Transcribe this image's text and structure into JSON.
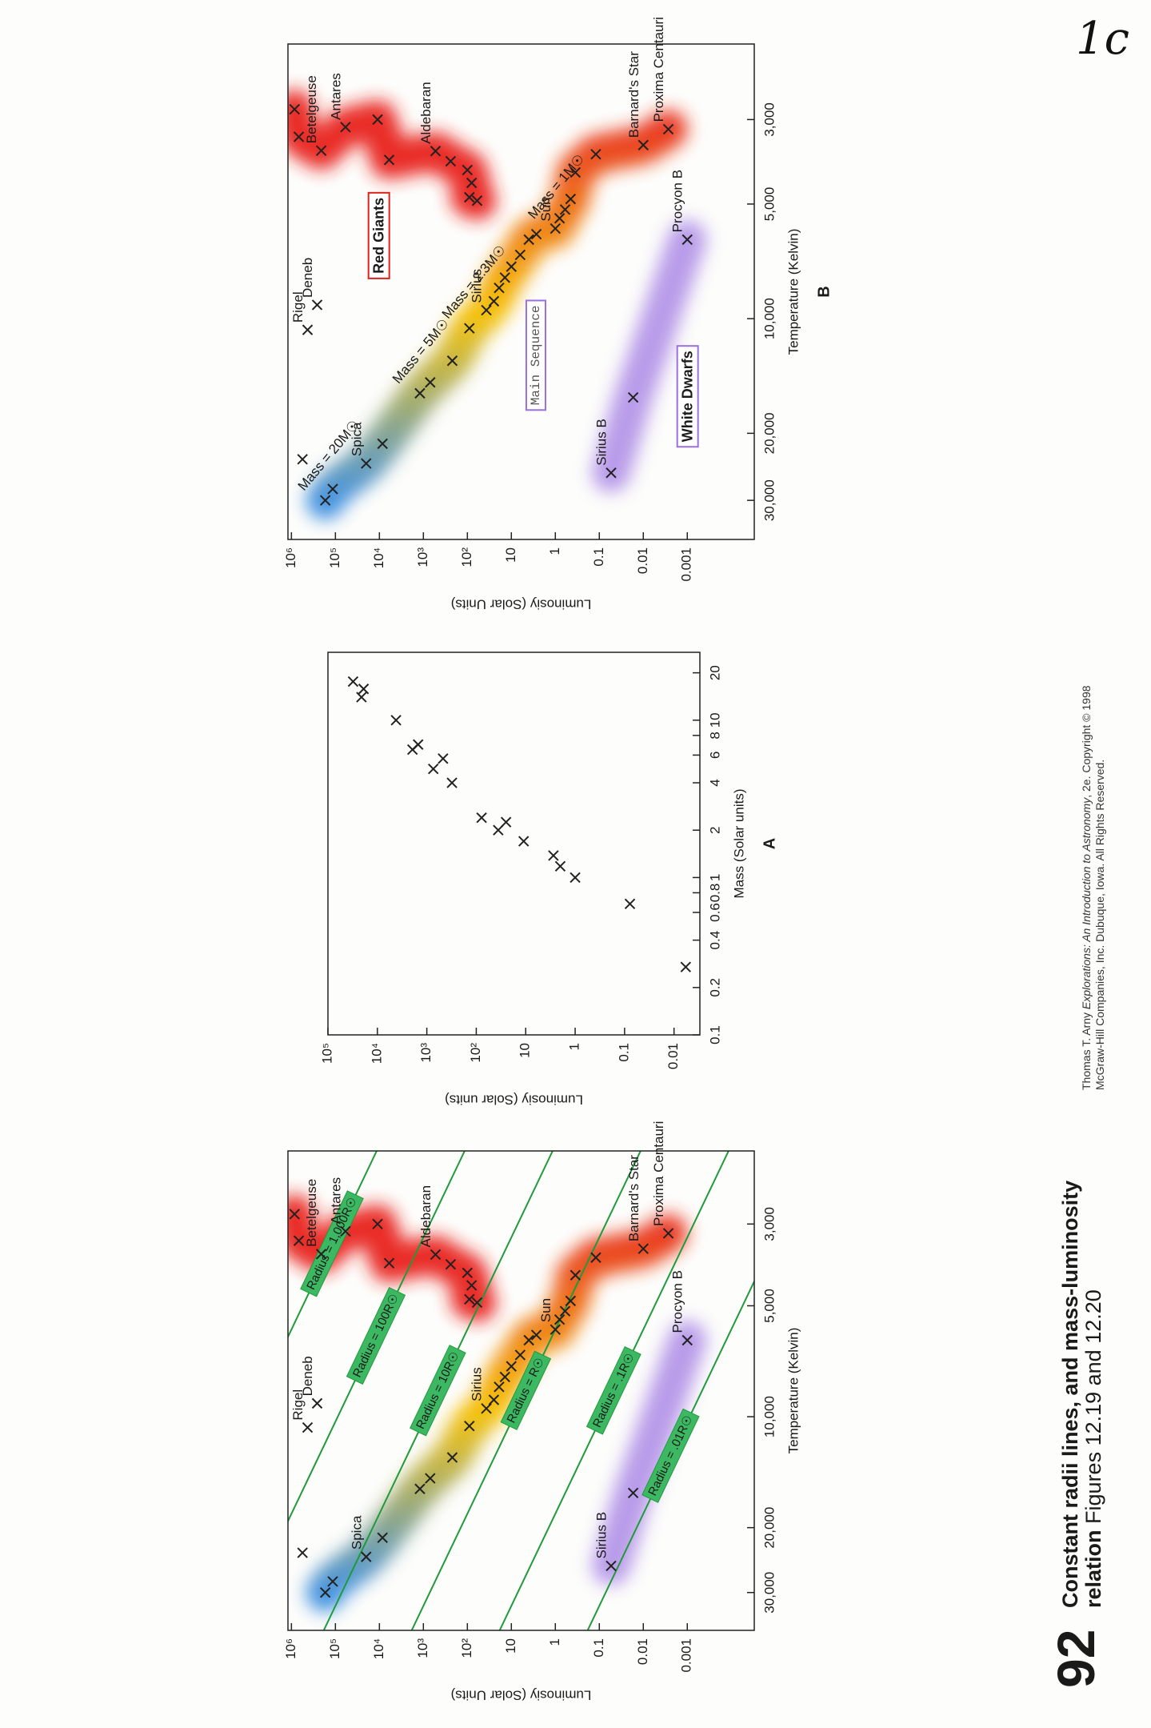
{
  "handwritten_note": "1c",
  "page_number": "92",
  "caption": {
    "title": "Constant radii lines, and mass-luminosity relation",
    "figures": "Figures 12.19 and 12.20"
  },
  "credit": {
    "author": "Thomas T. Arny",
    "book": "Explorations: An Introduction to Astronomy",
    "edition": ", 2e. Copyright © 1998",
    "publisher": "McGraw-Hill Companies, Inc. Dubuque, Iowa. All Rights Reserved."
  },
  "chart_data": [
    {
      "type": "scatter",
      "x_label": "Temperature (Kelvin)",
      "y_label": "Luminosiy (Solar Units)",
      "x_scale": "log",
      "y_scale": "log",
      "xlim": [
        38000,
        1900
      ],
      "ylim": [
        3e-05,
        1200000
      ],
      "xticks": [
        {
          "value": 30000,
          "label": "30,000"
        },
        {
          "value": 20000,
          "label": "20,000"
        },
        {
          "value": 10000,
          "label": "10,000"
        },
        {
          "value": 5000,
          "label": "5,000"
        },
        {
          "value": 3000,
          "label": "3,000"
        }
      ],
      "yticks": [
        {
          "value": 1000000,
          "label": "10⁶"
        },
        {
          "value": 100000,
          "label": "10⁵"
        },
        {
          "value": 10000,
          "label": "10⁴"
        },
        {
          "value": 1000,
          "label": "10³"
        },
        {
          "value": 100,
          "label": "10²"
        },
        10,
        1,
        0.1,
        0.01,
        0.001
      ],
      "marker_color": "#222222",
      "radius_lines": {
        "color": "#1f9a3c",
        "label_color": "#3db862",
        "values": [
          1000,
          100,
          10,
          1,
          0.1,
          0.01
        ],
        "value_labels": [
          "Radius = 1,000R☉",
          "Radius = 100R☉",
          "Radius = 10R☉",
          "Radius = R☉",
          "Radius = .1R☉",
          "Radius = .01R☉"
        ]
      },
      "series": [
        {
          "colors": [
            "#3d8fe0",
            "#f5c000",
            "#e8321a"
          ],
          "x": [
            30000,
            28000,
            24000,
            21300,
            15700,
            14700,
            12900,
            10600,
            9500,
            9000,
            8300,
            7800,
            7300,
            6800,
            6200,
            6000,
            5800,
            5450,
            5170,
            4850,
            4130,
            3700,
            3500,
            3180
          ],
          "values": [
            170000,
            115000,
            20000,
            8500,
            1200,
            700,
            220,
            90,
            37,
            25,
            19,
            14,
            10,
            6.3,
            4,
            2.7,
            1,
            0.8,
            0.6,
            0.45,
            0.35,
            0.12,
            0.01,
            0.0027
          ],
          "labels": [
            null,
            null,
            "Spica",
            null,
            null,
            null,
            null,
            null,
            "Sirius",
            null,
            null,
            null,
            null,
            null,
            null,
            null,
            "Sun",
            null,
            null,
            null,
            null,
            null,
            "Barnard's Star",
            "Proxima Centauri"
          ]
        },
        {
          "color": "#e8201a",
          "x": [
            4900,
            4800,
            4400,
            4070,
            3860,
            3630,
            3830,
            3000,
            3140,
            3620,
            3330,
            2820
          ],
          "values": [
            60,
            90,
            80,
            100,
            240,
            530,
            6000,
            11000,
            59000,
            210000,
            680000,
            850000
          ],
          "labels": [
            null,
            null,
            null,
            null,
            null,
            "Aldebaran",
            null,
            null,
            "Antares",
            "Betelgeuse",
            null,
            null
          ]
        },
        {
          "color": "#b596e8",
          "x": [
            25400,
            16100,
            6200
          ],
          "values": [
            0.054,
            0.017,
            0.001
          ],
          "labels": [
            "Sirius B",
            null,
            "Procyon B"
          ]
        },
        {
          "x": [
            23400,
            10700,
            9200
          ],
          "values": [
            560000,
            430000,
            260000
          ],
          "labels": [
            null,
            "Rigel",
            "Deneb"
          ]
        }
      ]
    },
    {
      "type": "scatter",
      "panel_label": "A",
      "x_label": "Mass (Solar units)",
      "y_label": "Luminosiy (Solar units)",
      "x_scale": "log",
      "y_scale": "log",
      "xlim": [
        0.1,
        27
      ],
      "ylim": [
        0.003,
        100000
      ],
      "xticks": [
        0.1,
        0.2,
        0.4,
        0.6,
        0.8,
        1,
        2,
        4,
        6,
        8,
        10,
        20
      ],
      "yticks": [
        {
          "value": 100000,
          "label": "10⁵"
        },
        {
          "value": 10000,
          "label": "10⁴"
        },
        {
          "value": 1000,
          "label": "10³"
        },
        {
          "value": 100,
          "label": "10²"
        },
        10,
        1,
        0.1,
        0.01
      ],
      "marker_color": "#222222",
      "x": [
        17.6,
        14,
        15.8,
        10,
        6.5,
        7,
        4.9,
        5.7,
        4.0,
        2.4,
        2.0,
        2.25,
        1.7,
        1.38,
        1.18,
        1.0,
        0.68,
        0.27
      ],
      "values": [
        31000,
        21000,
        19000,
        4200,
        1950,
        1500,
        740,
        470,
        310,
        78,
        36,
        25,
        11,
        2.75,
        2.0,
        1.0,
        0.078,
        0.0058
      ]
    },
    {
      "type": "scatter",
      "panel_label": "B",
      "x_label": "Temperature (Kelvin)",
      "y_label": "Luminosiy (Solar Units)",
      "x_scale": "log",
      "y_scale": "log",
      "xlim": [
        38000,
        1900
      ],
      "ylim": [
        3e-05,
        1200000
      ],
      "xticks": [
        {
          "value": 30000,
          "label": "30,000"
        },
        {
          "value": 20000,
          "label": "20,000"
        },
        {
          "value": 10000,
          "label": "10,000"
        },
        {
          "value": 5000,
          "label": "5,000"
        },
        {
          "value": 3000,
          "label": "3,000"
        }
      ],
      "yticks": [
        {
          "value": 1000000,
          "label": "10⁶"
        },
        {
          "value": 100000,
          "label": "10⁵"
        },
        {
          "value": 10000,
          "label": "10⁴"
        },
        {
          "value": 1000,
          "label": "10³"
        },
        {
          "value": 100,
          "label": "10²"
        },
        10,
        1,
        0.1,
        0.01,
        0.001
      ],
      "marker_color": "#222222",
      "series": [
        {
          "name": "Main Sequence",
          "colors": [
            "#3d8fe0",
            "#f5c000",
            "#e8321a"
          ],
          "x": [
            30000,
            28000,
            24000,
            21300,
            15700,
            14700,
            12900,
            10600,
            9500,
            9000,
            8300,
            7800,
            7300,
            6800,
            6200,
            6000,
            5800,
            5450,
            5170,
            4850,
            4130,
            3700,
            3500,
            3180
          ],
          "values": [
            170000,
            115000,
            20000,
            8500,
            1200,
            700,
            220,
            90,
            37,
            25,
            19,
            14,
            10,
            6.3,
            4,
            2.7,
            1,
            0.8,
            0.6,
            0.45,
            0.35,
            0.12,
            0.01,
            0.0027
          ],
          "labels": [
            null,
            null,
            "Spica",
            null,
            null,
            null,
            null,
            null,
            "Sirius",
            null,
            null,
            null,
            null,
            null,
            null,
            null,
            "Sun",
            null,
            null,
            null,
            null,
            null,
            "Barnard's Star",
            "Proxima Centauri"
          ],
          "annotations": [
            "Mass = 20M☉",
            null,
            null,
            null,
            "Mass = 5M☉",
            null,
            null,
            "Mass = 2.3M☉",
            null,
            null,
            null,
            null,
            null,
            null,
            null,
            null,
            "Mass = 1M☉",
            null,
            null,
            null,
            null,
            null,
            null,
            null
          ]
        },
        {
          "name": "Red Giants",
          "color": "#e8201a",
          "x": [
            4900,
            4800,
            4400,
            4070,
            3860,
            3630,
            3830,
            3000,
            3140,
            3620,
            3330,
            2820
          ],
          "values": [
            60,
            90,
            80,
            100,
            240,
            530,
            6000,
            11000,
            59000,
            210000,
            680000,
            850000
          ],
          "labels": [
            null,
            null,
            null,
            null,
            null,
            "Aldebaran",
            null,
            null,
            "Antares",
            "Betelgeuse",
            null,
            null
          ]
        },
        {
          "name": "White Dwarfs",
          "color": "#b596e8",
          "x": [
            25400,
            16100,
            6200
          ],
          "values": [
            0.054,
            0.017,
            0.001
          ],
          "labels": [
            "Sirius B",
            null,
            "Procyon B"
          ]
        },
        {
          "x": [
            23400,
            10700,
            9200
          ],
          "values": [
            560000,
            430000,
            260000
          ],
          "labels": [
            null,
            "Rigel",
            "Deneb"
          ]
        }
      ]
    }
  ]
}
